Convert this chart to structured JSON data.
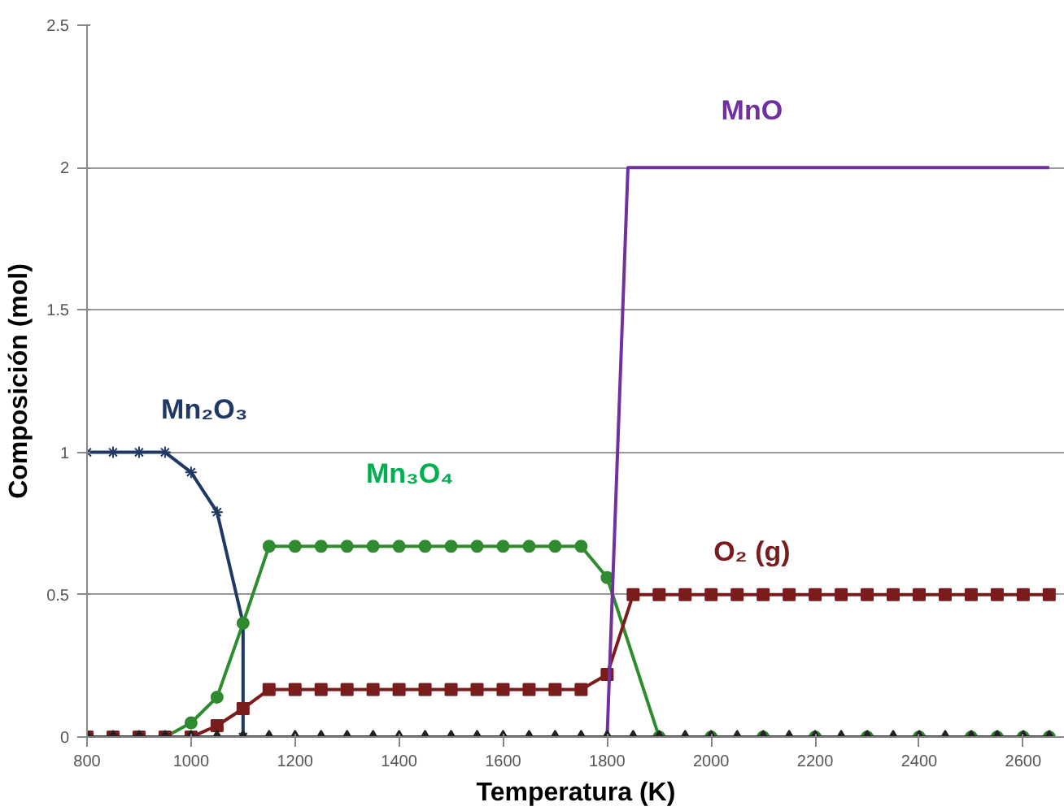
{
  "chart_data": {
    "type": "line",
    "xlabel": "Temperatura (K)",
    "ylabel": "Composición (mol)",
    "xlim": [
      800,
      2680
    ],
    "ylim": [
      0,
      2.5
    ],
    "xticks": [
      800,
      1000,
      1200,
      1400,
      1600,
      1800,
      2000,
      2200,
      2400,
      2600
    ],
    "yticks": [
      0,
      0.5,
      1,
      1.5,
      2,
      2.5
    ],
    "grid": "y",
    "series": [
      {
        "color": "#1f3864",
        "marker": "cross",
        "x": [
          800,
          850,
          900,
          950,
          1000,
          1050,
          1100,
          1100
        ],
        "values": [
          1,
          1,
          1,
          1,
          0.93,
          0.79,
          0.4,
          0
        ]
      },
      {
        "color": "#2e8b2e",
        "marker": "circle",
        "x": [
          950,
          1000,
          1050,
          1100,
          1150,
          1200,
          1250,
          1300,
          1350,
          1400,
          1450,
          1500,
          1550,
          1600,
          1650,
          1700,
          1750,
          1800,
          1900,
          2000,
          2100,
          2200,
          2300,
          2400,
          2500,
          2550,
          2600,
          2650
        ],
        "values": [
          0,
          0.05,
          0.14,
          0.4,
          0.67,
          0.67,
          0.67,
          0.67,
          0.67,
          0.67,
          0.67,
          0.67,
          0.67,
          0.67,
          0.67,
          0.67,
          0.67,
          0.56,
          0,
          0,
          0,
          0,
          0,
          0,
          0,
          0,
          0,
          0
        ]
      },
      {
        "color": "#7b1c1c",
        "marker": "square",
        "x": [
          800,
          850,
          900,
          950,
          1000,
          1050,
          1100,
          1150,
          1200,
          1250,
          1300,
          1350,
          1400,
          1450,
          1500,
          1550,
          1600,
          1650,
          1700,
          1750,
          1800,
          1850,
          1900,
          1950,
          2000,
          2050,
          2100,
          2150,
          2200,
          2250,
          2300,
          2350,
          2400,
          2450,
          2500,
          2550,
          2600,
          2650
        ],
        "values": [
          0,
          0,
          0,
          0,
          0,
          0.04,
          0.1,
          0.167,
          0.167,
          0.167,
          0.167,
          0.167,
          0.167,
          0.167,
          0.167,
          0.167,
          0.167,
          0.167,
          0.167,
          0.167,
          0.22,
          0.5,
          0.5,
          0.5,
          0.5,
          0.5,
          0.5,
          0.5,
          0.5,
          0.5,
          0.5,
          0.5,
          0.5,
          0.5,
          0.5,
          0.5,
          0.5,
          0.5
        ]
      },
      {
        "color": "#7030a0",
        "marker": "none",
        "x": [
          800,
          1800,
          1840,
          1850,
          1900,
          1950,
          2000,
          2050,
          2100,
          2150,
          2200,
          2250,
          2300,
          2350,
          2400,
          2450,
          2500,
          2550,
          2600,
          2650
        ],
        "values": [
          0,
          0,
          2,
          2,
          2,
          2,
          2,
          2,
          2,
          2,
          2,
          2,
          2,
          2,
          2,
          2,
          2,
          2,
          2,
          2
        ]
      },
      {
        "color": "#222222",
        "marker": "triangle",
        "x": [
          800,
          850,
          900,
          950,
          1000,
          1050,
          1100,
          1150,
          1200,
          1250,
          1300,
          1350,
          1400,
          1450,
          1500,
          1550,
          1600,
          1650,
          1700,
          1750,
          1800,
          1850,
          1900,
          1950,
          2000,
          2050,
          2100,
          2150,
          2200,
          2250,
          2300,
          2350,
          2400,
          2450,
          2500,
          2550,
          2600,
          2650
        ],
        "values": [
          0,
          0,
          0,
          0,
          0,
          0,
          0,
          0,
          0,
          0,
          0,
          0,
          0,
          0,
          0,
          0,
          0,
          0,
          0,
          0,
          0,
          0,
          0,
          0,
          0,
          0,
          0,
          0,
          0,
          0,
          0,
          0,
          0,
          0,
          0,
          0,
          0,
          0
        ]
      }
    ],
    "annotations": [
      "Mn₂O₃",
      "Mn₃O₄",
      "MnO",
      "O₂ (g)"
    ]
  }
}
